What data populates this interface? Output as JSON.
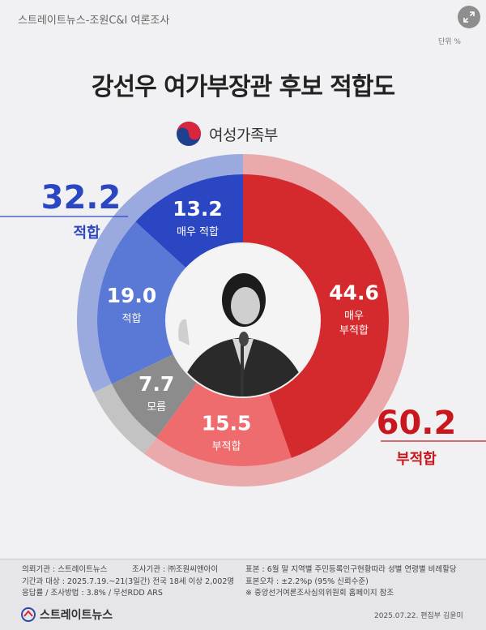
{
  "header": {
    "source": "스트레이트뉴스-조원C&I 여론조사",
    "unit": "단위 %",
    "ministry": "여성가족부"
  },
  "chart_data": {
    "type": "pie",
    "title": "강선우 여가부장관 후보 적합도",
    "unit": "%",
    "inner": {
      "categories": [
        "매우 적합",
        "적합",
        "모름",
        "부적합",
        "매우 부적합"
      ],
      "values": [
        13.2,
        19.0,
        7.7,
        15.5,
        44.6
      ],
      "colors": [
        "#2a46c2",
        "#5a78d6",
        "#8c8c8c",
        "#ee6b6e",
        "#d42a2d"
      ]
    },
    "outer": {
      "categories": [
        "적합",
        "모름",
        "부적합"
      ],
      "values": [
        32.2,
        7.7,
        60.2
      ],
      "colors": [
        "#9aaade",
        "#c3c3c3",
        "#eaa9ab"
      ]
    },
    "callouts": [
      {
        "value": "32.2",
        "label": "적합",
        "color": "#2a46c2"
      },
      {
        "value": "60.2",
        "label": "부적합",
        "color": "#c8171d"
      }
    ]
  },
  "footer": {
    "left": [
      "의뢰기관 : 스트레이트뉴스",
      "기간과 대상 : 2025.7.19.~21(3일간) 전국 18세 이상 2,002명",
      "응답률 / 조사방법 : 3.8% / 무선RDD ARS"
    ],
    "middle": [
      "조사기관 : ㈜조원씨앤아이"
    ],
    "right": [
      "표본 : 6월 말 지역별 주민등록인구현황따라 성별 연령별 비례할당",
      "표본오차 : ±2.2%p (95% 신뢰수준)",
      "※ 중앙선거여론조사심의위원회 홈페이지 참조"
    ],
    "brand": "스트레이트뉴스",
    "credit": "2025.07.22. 편집부 김윤미"
  }
}
